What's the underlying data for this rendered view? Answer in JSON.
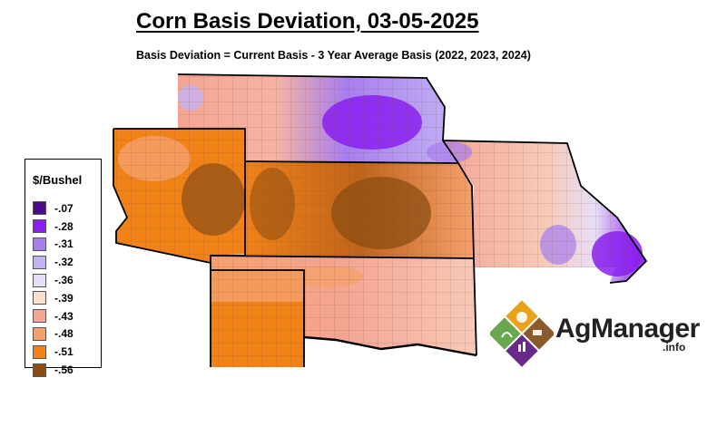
{
  "title": "Corn Basis Deviation, 03-05-2025",
  "subtitle": "Basis Deviation = Current Basis - 3 Year Average Basis (2022, 2023, 2024)",
  "legend": {
    "title": "$/Bushel",
    "items": [
      {
        "label": "-.07",
        "color": "#4b0a8c"
      },
      {
        "label": "-.28",
        "color": "#8a1ff0"
      },
      {
        "label": "-.31",
        "color": "#a77ef0"
      },
      {
        "label": "-.32",
        "color": "#c3b2f4"
      },
      {
        "label": "-.36",
        "color": "#e6def7"
      },
      {
        "label": "-.39",
        "color": "#f7dfd0"
      },
      {
        "label": "-.43",
        "color": "#f4a593"
      },
      {
        "label": "-.48",
        "color": "#f5a06c"
      },
      {
        "label": "-.51",
        "color": "#f08218"
      },
      {
        "label": "-.56",
        "color": "#8c4d12"
      }
    ]
  },
  "logo": {
    "wordmark": "AgManager",
    "suffix": ".info"
  }
}
